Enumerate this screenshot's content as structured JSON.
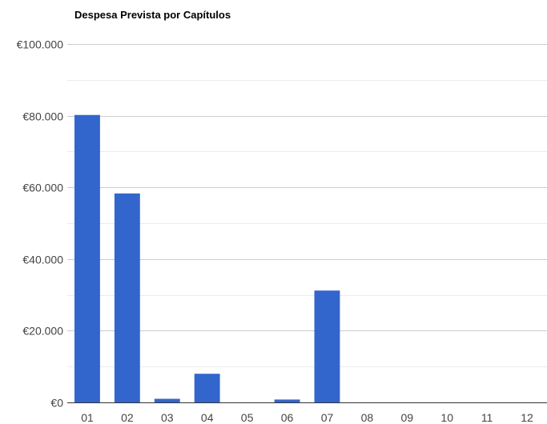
{
  "chart_data": {
    "type": "bar",
    "title": "Despesa Prevista por Capítulos",
    "xlabel": "",
    "ylabel": "",
    "categories": [
      "01",
      "02",
      "03",
      "04",
      "05",
      "06",
      "07",
      "08",
      "09",
      "10",
      "11",
      "12"
    ],
    "values": [
      80200,
      58300,
      1000,
      8000,
      0,
      800,
      31200,
      0,
      0,
      0,
      0,
      0
    ],
    "ylim": [
      0,
      100000
    ],
    "yticks": [
      0,
      20000,
      40000,
      60000,
      80000,
      100000
    ],
    "ytick_labels": [
      "€0",
      "€20.000",
      "€40.000",
      "€60.000",
      "€80.000",
      "€100.000"
    ],
    "grid": true,
    "legend": "none",
    "bar_color": "#3366cc",
    "grid_color": "#cccccc",
    "minor_grid_color": "#ebebeb"
  }
}
